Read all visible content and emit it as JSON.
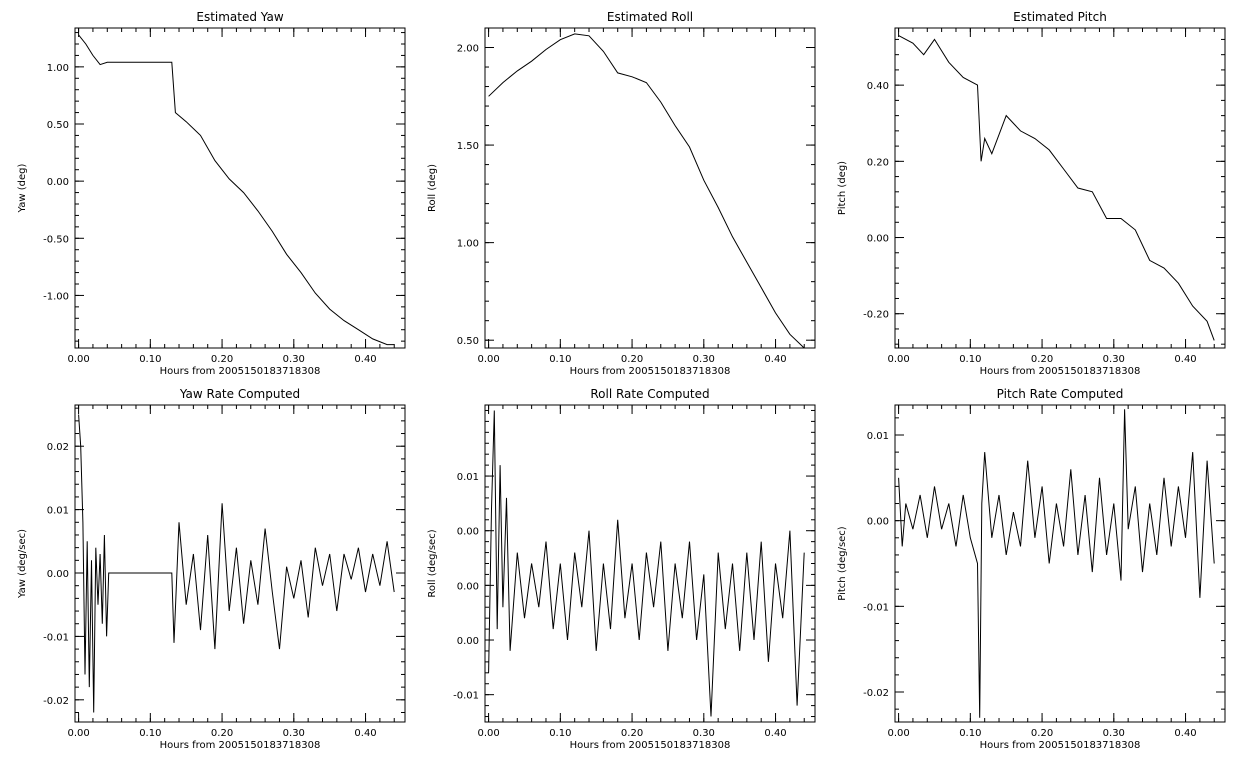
{
  "charts": [
    {
      "type": "line",
      "title": "Estimated Yaw",
      "xlabel": "Hours from 2005150183718308",
      "ylabel": "Yaw (deg)",
      "xlim": [
        -0.005,
        0.455
      ],
      "ylim": [
        -1.46,
        1.34
      ],
      "xticks": [
        0.0,
        0.1,
        0.2,
        0.3,
        0.4
      ],
      "xtick_labels": [
        "0.00",
        "0.10",
        "0.20",
        "0.30",
        "0.40"
      ],
      "yticks": [
        1.0,
        0.5,
        0.0,
        -0.5,
        -1.0
      ],
      "ytick_labels": [
        "1.00",
        "0.50",
        "0.00",
        "-0.50",
        "-1.00"
      ],
      "x": [
        0.0,
        0.01,
        0.02,
        0.03,
        0.04,
        0.13,
        0.135,
        0.15,
        0.17,
        0.19,
        0.21,
        0.23,
        0.25,
        0.27,
        0.29,
        0.31,
        0.33,
        0.35,
        0.37,
        0.39,
        0.41,
        0.43,
        0.44
      ],
      "y": [
        1.28,
        1.2,
        1.1,
        1.02,
        1.04,
        1.04,
        0.6,
        0.52,
        0.4,
        0.18,
        0.02,
        -0.1,
        -0.26,
        -0.44,
        -0.64,
        -0.8,
        -0.98,
        -1.12,
        -1.22,
        -1.3,
        -1.38,
        -1.43,
        -1.43
      ]
    },
    {
      "type": "line",
      "title": "Estimated Roll",
      "xlabel": "Hours from 2005150183718308",
      "ylabel": "Roll (deg)",
      "xlim": [
        -0.005,
        0.455
      ],
      "ylim": [
        0.46,
        2.1
      ],
      "xticks": [
        0.0,
        0.1,
        0.2,
        0.3,
        0.4
      ],
      "xtick_labels": [
        "0.00",
        "0.10",
        "0.20",
        "0.30",
        "0.40"
      ],
      "yticks": [
        2.0,
        1.5,
        1.0,
        0.5
      ],
      "ytick_labels": [
        "2.00",
        "1.50",
        "1.00",
        "0.50"
      ],
      "x": [
        0.0,
        0.02,
        0.04,
        0.06,
        0.08,
        0.1,
        0.12,
        0.14,
        0.16,
        0.18,
        0.2,
        0.22,
        0.24,
        0.26,
        0.28,
        0.3,
        0.32,
        0.34,
        0.36,
        0.38,
        0.4,
        0.42,
        0.44
      ],
      "y": [
        1.75,
        1.82,
        1.88,
        1.93,
        1.99,
        2.04,
        2.07,
        2.06,
        1.98,
        1.87,
        1.85,
        1.82,
        1.72,
        1.6,
        1.49,
        1.32,
        1.18,
        1.03,
        0.9,
        0.77,
        0.64,
        0.53,
        0.46
      ]
    },
    {
      "type": "line",
      "title": "Estimated Pitch",
      "xlabel": "Hours from 2005150183718308",
      "ylabel": "Pitch (deg)",
      "xlim": [
        -0.005,
        0.455
      ],
      "ylim": [
        -0.29,
        0.55
      ],
      "xticks": [
        0.0,
        0.1,
        0.2,
        0.3,
        0.4
      ],
      "xtick_labels": [
        "0.00",
        "0.10",
        "0.20",
        "0.30",
        "0.40"
      ],
      "yticks": [
        0.4,
        0.2,
        0.0,
        -0.2
      ],
      "ytick_labels": [
        "0.40",
        "0.20",
        "0.00",
        "-0.20"
      ],
      "x": [
        0.0,
        0.02,
        0.035,
        0.05,
        0.07,
        0.09,
        0.11,
        0.115,
        0.12,
        0.13,
        0.15,
        0.17,
        0.19,
        0.21,
        0.23,
        0.25,
        0.27,
        0.29,
        0.31,
        0.33,
        0.35,
        0.37,
        0.39,
        0.41,
        0.43,
        0.44
      ],
      "y": [
        0.53,
        0.51,
        0.48,
        0.52,
        0.46,
        0.42,
        0.4,
        0.2,
        0.26,
        0.22,
        0.32,
        0.28,
        0.26,
        0.23,
        0.18,
        0.13,
        0.12,
        0.05,
        0.05,
        0.02,
        -0.06,
        -0.08,
        -0.12,
        -0.18,
        -0.22,
        -0.27
      ]
    },
    {
      "type": "line",
      "title": "Yaw Rate Computed",
      "xlabel": "Hours from 2005150183718308",
      "ylabel": "Yaw (deg/sec)",
      "xlim": [
        -0.005,
        0.455
      ],
      "ylim": [
        -0.0235,
        0.0265
      ],
      "xticks": [
        0.0,
        0.1,
        0.2,
        0.3,
        0.4
      ],
      "xtick_labels": [
        "0.00",
        "0.10",
        "0.20",
        "0.30",
        "0.40"
      ],
      "yticks": [
        0.02,
        0.01,
        0.0,
        -0.01,
        -0.02
      ],
      "ytick_labels": [
        "0.02",
        "0.01",
        "0.00",
        "-0.01",
        "-0.02"
      ],
      "x": [
        0.0,
        0.003,
        0.006,
        0.009,
        0.012,
        0.015,
        0.018,
        0.021,
        0.024,
        0.027,
        0.03,
        0.033,
        0.036,
        0.039,
        0.042,
        0.045,
        0.13,
        0.133,
        0.14,
        0.15,
        0.16,
        0.17,
        0.18,
        0.19,
        0.2,
        0.21,
        0.22,
        0.23,
        0.24,
        0.25,
        0.26,
        0.27,
        0.28,
        0.29,
        0.3,
        0.31,
        0.32,
        0.33,
        0.34,
        0.35,
        0.36,
        0.37,
        0.38,
        0.39,
        0.4,
        0.41,
        0.42,
        0.43,
        0.44
      ],
      "y": [
        0.025,
        0.02,
        0.008,
        -0.016,
        0.005,
        -0.018,
        0.002,
        -0.022,
        0.004,
        -0.005,
        0.003,
        -0.008,
        0.006,
        -0.01,
        0.0,
        0.0,
        0.0,
        -0.011,
        0.008,
        -0.005,
        0.003,
        -0.009,
        0.006,
        -0.012,
        0.011,
        -0.006,
        0.004,
        -0.008,
        0.002,
        -0.005,
        0.007,
        -0.003,
        -0.012,
        0.001,
        -0.004,
        0.002,
        -0.007,
        0.004,
        -0.002,
        0.003,
        -0.006,
        0.003,
        -0.001,
        0.004,
        -0.003,
        0.003,
        -0.002,
        0.005,
        -0.003
      ]
    },
    {
      "type": "line",
      "title": "Roll Rate Computed",
      "xlabel": "Hours from 2005150183718308",
      "ylabel": "Roll (deg/sec)",
      "xlim": [
        -0.005,
        0.455
      ],
      "ylim": [
        -0.0125,
        0.0165
      ],
      "xticks": [
        0.0,
        0.1,
        0.2,
        0.3,
        0.4
      ],
      "xtick_labels": [
        "0.00",
        "0.10",
        "0.20",
        "0.30",
        "0.40"
      ],
      "yticks": [
        0.01,
        0.005,
        0.0,
        -0.005,
        -0.01
      ],
      "ytick_labels": [
        "0.01",
        "0.00",
        "0.00",
        "0.00",
        "-0.01"
      ],
      "x": [
        0.0,
        0.004,
        0.008,
        0.012,
        0.016,
        0.02,
        0.025,
        0.03,
        0.04,
        0.05,
        0.06,
        0.07,
        0.08,
        0.09,
        0.1,
        0.11,
        0.12,
        0.13,
        0.14,
        0.15,
        0.16,
        0.17,
        0.18,
        0.19,
        0.2,
        0.21,
        0.22,
        0.23,
        0.24,
        0.25,
        0.26,
        0.27,
        0.28,
        0.29,
        0.3,
        0.31,
        0.32,
        0.33,
        0.34,
        0.35,
        0.36,
        0.37,
        0.38,
        0.39,
        0.4,
        0.41,
        0.42,
        0.43,
        0.44
      ],
      "y": [
        -0.008,
        0.007,
        0.016,
        -0.004,
        0.011,
        -0.002,
        0.008,
        -0.006,
        0.003,
        -0.003,
        0.002,
        -0.002,
        0.004,
        -0.004,
        0.002,
        -0.005,
        0.003,
        -0.002,
        0.005,
        -0.006,
        0.002,
        -0.004,
        0.006,
        -0.003,
        0.002,
        -0.005,
        0.003,
        -0.002,
        0.004,
        -0.006,
        0.002,
        -0.003,
        0.004,
        -0.005,
        0.001,
        -0.012,
        0.003,
        -0.004,
        0.002,
        -0.006,
        0.003,
        -0.005,
        0.004,
        -0.007,
        0.002,
        -0.003,
        0.005,
        -0.011,
        0.003
      ]
    },
    {
      "type": "line",
      "title": "Pitch Rate Computed",
      "xlabel": "Hours from 2005150183718308",
      "ylabel": "Pitch (deg/sec)",
      "xlim": [
        -0.005,
        0.455
      ],
      "ylim": [
        -0.0235,
        0.0135
      ],
      "xticks": [
        0.0,
        0.1,
        0.2,
        0.3,
        0.4
      ],
      "xtick_labels": [
        "0.00",
        "0.10",
        "0.20",
        "0.30",
        "0.40"
      ],
      "yticks": [
        0.01,
        0.0,
        -0.01,
        -0.02
      ],
      "ytick_labels": [
        "0.01",
        "0.00",
        "-0.01",
        "-0.02"
      ],
      "x": [
        0.0,
        0.005,
        0.01,
        0.02,
        0.03,
        0.04,
        0.05,
        0.06,
        0.07,
        0.08,
        0.09,
        0.1,
        0.11,
        0.113,
        0.116,
        0.12,
        0.13,
        0.14,
        0.15,
        0.16,
        0.17,
        0.18,
        0.19,
        0.2,
        0.21,
        0.22,
        0.23,
        0.24,
        0.25,
        0.26,
        0.27,
        0.28,
        0.29,
        0.3,
        0.31,
        0.315,
        0.32,
        0.33,
        0.34,
        0.35,
        0.36,
        0.37,
        0.38,
        0.39,
        0.4,
        0.41,
        0.42,
        0.43,
        0.44
      ],
      "y": [
        0.005,
        -0.003,
        0.002,
        -0.001,
        0.003,
        -0.002,
        0.004,
        -0.001,
        0.002,
        -0.003,
        0.003,
        -0.002,
        -0.005,
        -0.023,
        0.002,
        0.008,
        -0.002,
        0.003,
        -0.004,
        0.001,
        -0.003,
        0.007,
        -0.002,
        0.004,
        -0.005,
        0.002,
        -0.003,
        0.006,
        -0.004,
        0.003,
        -0.006,
        0.005,
        -0.004,
        0.002,
        -0.007,
        0.013,
        -0.001,
        0.004,
        -0.006,
        0.002,
        -0.004,
        0.005,
        -0.003,
        0.004,
        -0.002,
        0.008,
        -0.009,
        0.007,
        -0.005
      ]
    }
  ]
}
